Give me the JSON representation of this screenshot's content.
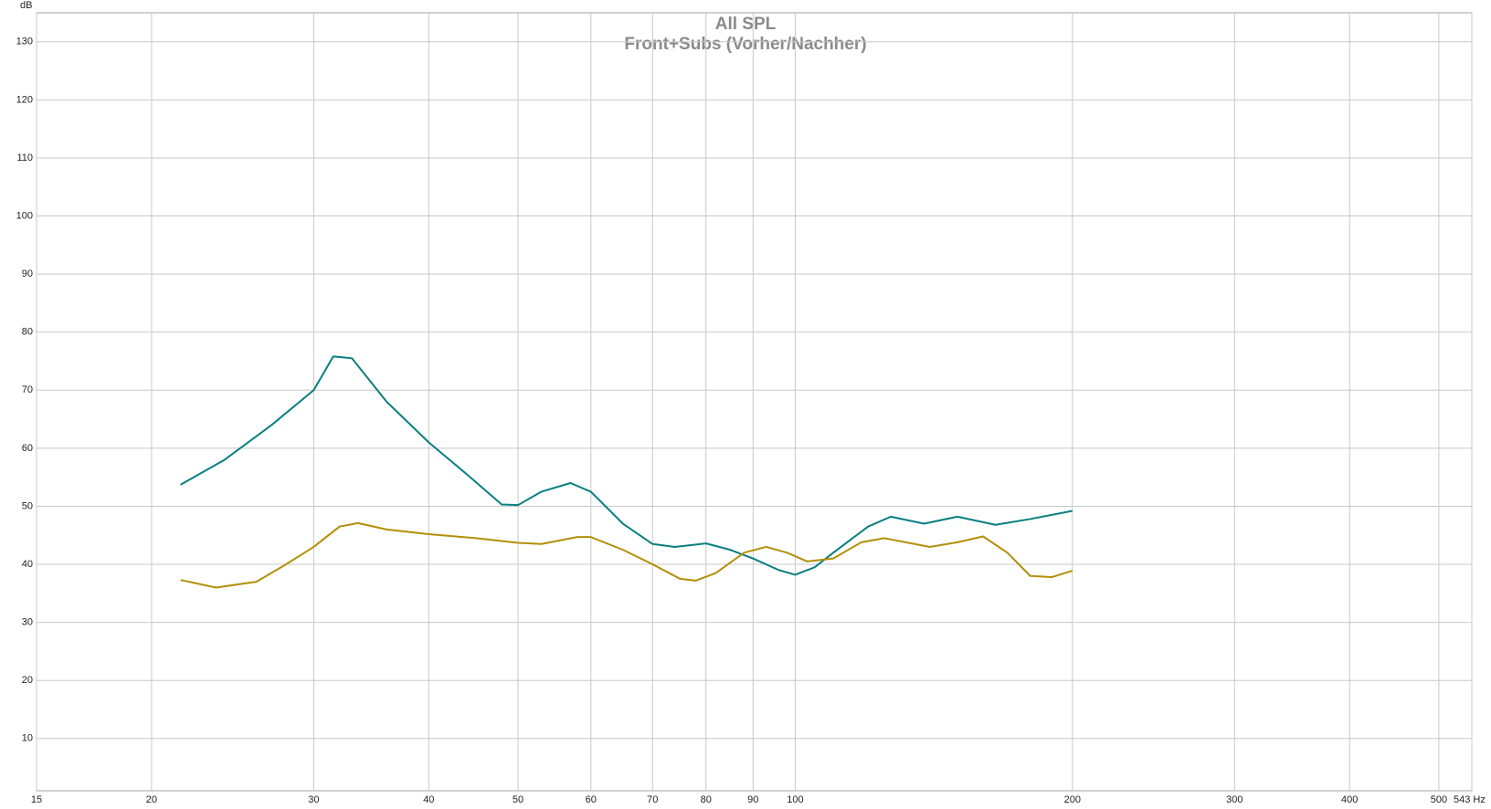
{
  "chart_data": {
    "type": "line",
    "title": "All SPL",
    "subtitle": "Front+Subs (Vorher/Nachher)",
    "ylabel": "dB",
    "xscale": "log",
    "grid": true,
    "xlim": [
      15,
      543
    ],
    "xticks": [
      15,
      20,
      30,
      40,
      50,
      60,
      70,
      80,
      90,
      100,
      200,
      300,
      400,
      500,
      {
        "value": 543,
        "label": "543 Hz"
      }
    ],
    "ylim": [
      1,
      135
    ],
    "yticks": [
      10,
      20,
      30,
      40,
      50,
      60,
      70,
      80,
      90,
      100,
      110,
      120,
      130
    ],
    "series": [
      {
        "color": "#087f80",
        "x": [
          21.5,
          24,
          27,
          30,
          31.5,
          33,
          36,
          40,
          44,
          48,
          50,
          53,
          57,
          60,
          65,
          70,
          74,
          80,
          85,
          90,
          96,
          100,
          105,
          110,
          120,
          127,
          138,
          150,
          165,
          180,
          200
        ],
        "values": [
          53.7,
          58,
          64,
          70,
          75.8,
          75.5,
          68,
          61,
          55.5,
          50.3,
          50.2,
          52.5,
          54,
          52.5,
          47,
          43.5,
          43,
          43.6,
          42.5,
          41,
          39,
          38.2,
          39.5,
          42,
          46.5,
          48.2,
          47,
          48.2,
          46.8,
          47.8,
          49.2
        ]
      },
      {
        "color": "#b38f0a",
        "x": [
          21.5,
          23.5,
          26,
          28,
          30,
          32,
          33.5,
          36,
          40,
          45,
          50,
          53,
          58,
          60,
          65,
          70,
          75,
          78,
          82,
          88,
          93,
          98,
          103,
          110,
          118,
          125,
          140,
          150,
          160,
          170,
          180,
          190,
          200
        ],
        "values": [
          37.3,
          36,
          37,
          40,
          43,
          46.5,
          47.1,
          46,
          45.2,
          44.5,
          43.7,
          43.5,
          44.7,
          44.7,
          42.5,
          40,
          37.5,
          37.2,
          38.5,
          42,
          43,
          42,
          40.5,
          41,
          43.8,
          44.5,
          43,
          43.8,
          44.8,
          42,
          38,
          37.8,
          38.9
        ]
      }
    ]
  }
}
